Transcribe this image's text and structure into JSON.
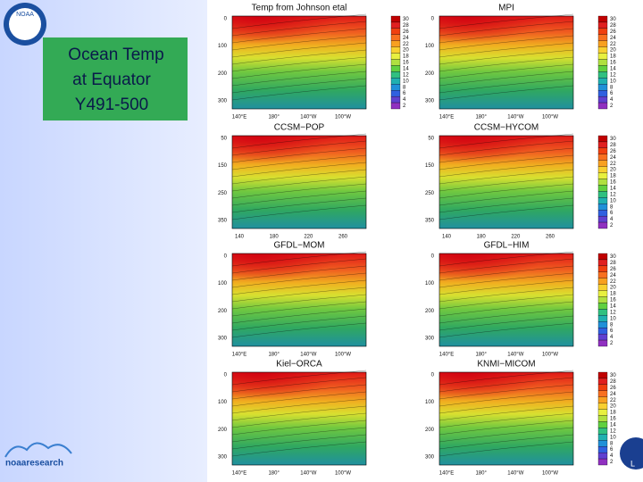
{
  "header": {
    "logo_text": "NOAA",
    "title_lines": [
      "Ocean Temp",
      "at Equator",
      "Y491-500"
    ]
  },
  "footer": {
    "logo_text": "noaaresearch",
    "corner_text": "L"
  },
  "panels": [
    {
      "title": "Temp from Johnson etal",
      "yticks": [
        "0",
        "100",
        "200",
        "300"
      ],
      "xticks": [
        "140°E",
        "180°",
        "140°W",
        "100°W"
      ],
      "colorbar": [
        "30",
        "28",
        "26",
        "24",
        "22",
        "20",
        "18",
        "16",
        "14",
        "12",
        "10",
        "8",
        "6",
        "4",
        "2"
      ]
    },
    {
      "title": "MPI",
      "yticks": [
        "0",
        "100",
        "200",
        "300"
      ],
      "xticks": [
        "140°E",
        "180°",
        "140°W",
        "100°W"
      ],
      "colorbar": [
        "30",
        "28",
        "26",
        "24",
        "22",
        "20",
        "18",
        "16",
        "14",
        "12",
        "10",
        "8",
        "6",
        "4",
        "2"
      ]
    },
    {
      "title": "CCSM−POP",
      "yticks": [
        "50",
        "150",
        "250",
        "350"
      ],
      "xticks": [
        "140",
        "180",
        "220",
        "260"
      ]
    },
    {
      "title": "CCSM−HYCOM",
      "yticks": [
        "50",
        "150",
        "250",
        "350"
      ],
      "xticks": [
        "140",
        "180",
        "220",
        "260"
      ],
      "colorbar": [
        "30",
        "28",
        "26",
        "24",
        "22",
        "20",
        "18",
        "16",
        "14",
        "12",
        "10",
        "8",
        "6",
        "4",
        "2"
      ]
    },
    {
      "title": "GFDL−MOM",
      "yticks": [
        "0",
        "100",
        "200",
        "300"
      ],
      "xticks": [
        "140°E",
        "180°",
        "140°W",
        "100°W"
      ]
    },
    {
      "title": "GFDL−HIM",
      "yticks": [
        "0",
        "100",
        "200",
        "300"
      ],
      "xticks": [
        "140°E",
        "180°",
        "140°W",
        "100°W"
      ],
      "colorbar": [
        "30",
        "28",
        "26",
        "24",
        "22",
        "20",
        "18",
        "16",
        "14",
        "12",
        "10",
        "8",
        "6",
        "4",
        "2"
      ]
    },
    {
      "title": "Kiel−ORCA",
      "yticks": [
        "0",
        "100",
        "200",
        "300"
      ],
      "xticks": [
        "140°E",
        "180°",
        "140°W",
        "100°W"
      ]
    },
    {
      "title": "KNMI−MICOM",
      "yticks": [
        "0",
        "100",
        "200",
        "300"
      ],
      "xticks": [
        "140°E",
        "180°",
        "140°W",
        "100°W"
      ],
      "colorbar": [
        "30",
        "28",
        "26",
        "24",
        "22",
        "20",
        "18",
        "16",
        "14",
        "12",
        "10",
        "8",
        "6",
        "4",
        "2"
      ]
    }
  ]
}
